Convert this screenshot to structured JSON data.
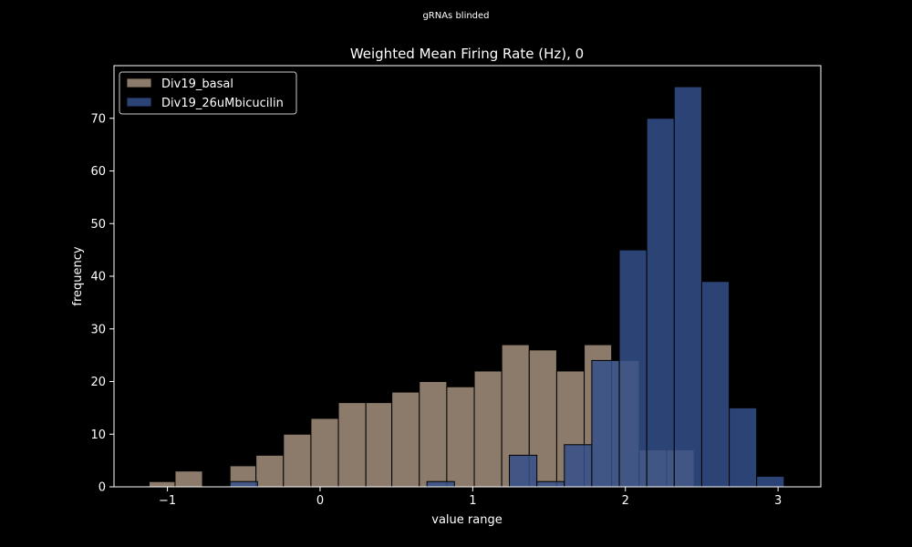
{
  "suptitle": "gRNAs blinded",
  "chart_data": {
    "type": "bar",
    "title": "Weighted Mean Firing Rate (Hz), 0",
    "xlabel": "value range",
    "ylabel": "frequency",
    "xlim": [
      -1.35,
      3.28
    ],
    "ylim": [
      0,
      80
    ],
    "xticks": [
      -1,
      0,
      1,
      2,
      3
    ],
    "xtick_labels": [
      "−1",
      "0",
      "1",
      "2",
      "3"
    ],
    "yticks": [
      0,
      10,
      20,
      30,
      40,
      50,
      60,
      70
    ],
    "yticks_labels": [
      "0",
      "10",
      "20",
      "30",
      "40",
      "50",
      "60",
      "70"
    ],
    "legend_position": "top-left",
    "grid": false,
    "series": [
      {
        "name": "Div19_basal",
        "color": "#8c7b6a",
        "bins": [
          {
            "x0": -1.12,
            "x1": -0.95,
            "value": 1
          },
          {
            "x0": -0.95,
            "x1": -0.77,
            "value": 3
          },
          {
            "x0": -0.59,
            "x1": -0.42,
            "value": 4
          },
          {
            "x0": -0.42,
            "x1": -0.24,
            "value": 6
          },
          {
            "x0": -0.24,
            "x1": -0.06,
            "value": 10
          },
          {
            "x0": -0.06,
            "x1": 0.12,
            "value": 13
          },
          {
            "x0": 0.12,
            "x1": 0.3,
            "value": 16
          },
          {
            "x0": 0.3,
            "x1": 0.47,
            "value": 16
          },
          {
            "x0": 0.47,
            "x1": 0.65,
            "value": 18
          },
          {
            "x0": 0.65,
            "x1": 0.83,
            "value": 20
          },
          {
            "x0": 0.83,
            "x1": 1.01,
            "value": 19
          },
          {
            "x0": 1.01,
            "x1": 1.19,
            "value": 22
          },
          {
            "x0": 1.19,
            "x1": 1.37,
            "value": 27
          },
          {
            "x0": 1.37,
            "x1": 1.55,
            "value": 26
          },
          {
            "x0": 1.55,
            "x1": 1.73,
            "value": 22
          },
          {
            "x0": 1.73,
            "x1": 1.91,
            "value": 27
          },
          {
            "x0": 1.91,
            "x1": 2.09,
            "value": 24
          },
          {
            "x0": 2.09,
            "x1": 2.27,
            "value": 7
          },
          {
            "x0": 2.27,
            "x1": 2.45,
            "value": 7
          }
        ]
      },
      {
        "name": "Div19_26uMbicucilin",
        "color": "#34508a",
        "bins": [
          {
            "x0": -0.59,
            "x1": -0.41,
            "value": 1
          },
          {
            "x0": 0.7,
            "x1": 0.88,
            "value": 1
          },
          {
            "x0": 1.24,
            "x1": 1.42,
            "value": 6
          },
          {
            "x0": 1.42,
            "x1": 1.6,
            "value": 1
          },
          {
            "x0": 1.6,
            "x1": 1.78,
            "value": 8
          },
          {
            "x0": 1.78,
            "x1": 1.96,
            "value": 24
          },
          {
            "x0": 1.96,
            "x1": 2.14,
            "value": 45
          },
          {
            "x0": 2.14,
            "x1": 2.32,
            "value": 70
          },
          {
            "x0": 2.32,
            "x1": 2.5,
            "value": 76
          },
          {
            "x0": 2.5,
            "x1": 2.68,
            "value": 39
          },
          {
            "x0": 2.68,
            "x1": 2.86,
            "value": 15
          },
          {
            "x0": 2.86,
            "x1": 3.04,
            "value": 2
          }
        ]
      }
    ]
  }
}
